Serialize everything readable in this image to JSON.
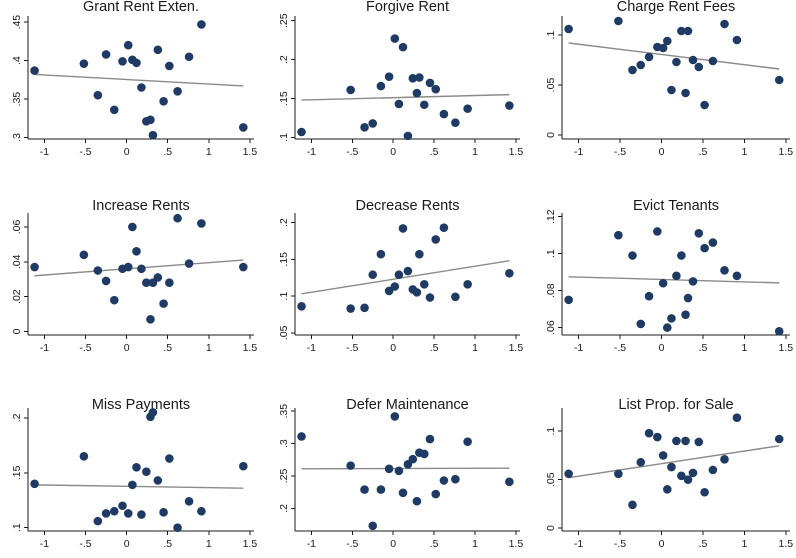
{
  "chart_data": [
    {
      "type": "scatter",
      "title": "Grant Rent Exten.",
      "xlabel": "",
      "ylabel": "",
      "xlim": [
        -1.2,
        1.55
      ],
      "ylim": [
        0.298,
        0.458
      ],
      "xticks": [
        -1,
        -0.5,
        0,
        0.5,
        1,
        1.5
      ],
      "xtick_labels": [
        "-1",
        "-.5",
        "0",
        ".5",
        "1",
        "1.5"
      ],
      "yticks": [
        0.3,
        0.35,
        0.4,
        0.45
      ],
      "ytick_labels": [
        ".3",
        ".35",
        ".4",
        ".45"
      ],
      "points": [
        {
          "x": -1.12,
          "y": 0.387
        },
        {
          "x": -0.52,
          "y": 0.396
        },
        {
          "x": -0.35,
          "y": 0.355
        },
        {
          "x": -0.25,
          "y": 0.408
        },
        {
          "x": -0.15,
          "y": 0.336
        },
        {
          "x": -0.05,
          "y": 0.399
        },
        {
          "x": 0.02,
          "y": 0.42
        },
        {
          "x": 0.07,
          "y": 0.401
        },
        {
          "x": 0.12,
          "y": 0.397
        },
        {
          "x": 0.18,
          "y": 0.365
        },
        {
          "x": 0.24,
          "y": 0.321
        },
        {
          "x": 0.29,
          "y": 0.323
        },
        {
          "x": 0.32,
          "y": 0.303
        },
        {
          "x": 0.38,
          "y": 0.414
        },
        {
          "x": 0.45,
          "y": 0.347
        },
        {
          "x": 0.52,
          "y": 0.393
        },
        {
          "x": 0.62,
          "y": 0.36
        },
        {
          "x": 0.76,
          "y": 0.405
        },
        {
          "x": 0.91,
          "y": 0.447
        },
        {
          "x": 1.42,
          "y": 0.313
        }
      ],
      "fit": [
        {
          "x": -1.12,
          "y": 0.382
        },
        {
          "x": 1.42,
          "y": 0.367
        }
      ]
    },
    {
      "type": "scatter",
      "title": "Forgive Rent",
      "xlabel": "",
      "ylabel": "",
      "xlim": [
        -1.2,
        1.55
      ],
      "ylim": [
        0.098,
        0.256
      ],
      "xticks": [
        -1,
        -0.5,
        0,
        0.5,
        1,
        1.5
      ],
      "xtick_labels": [
        "-1",
        "-.5",
        "0",
        ".5",
        "1",
        "1.5"
      ],
      "yticks": [
        0.1,
        0.15,
        0.2,
        0.25
      ],
      "ytick_labels": [
        ".1",
        ".15",
        ".2",
        ".25"
      ],
      "points": [
        {
          "x": -1.12,
          "y": 0.107
        },
        {
          "x": -0.52,
          "y": 0.161
        },
        {
          "x": -0.35,
          "y": 0.113
        },
        {
          "x": -0.25,
          "y": 0.118
        },
        {
          "x": -0.15,
          "y": 0.166
        },
        {
          "x": -0.05,
          "y": 0.178
        },
        {
          "x": 0.02,
          "y": 0.227
        },
        {
          "x": 0.07,
          "y": 0.143
        },
        {
          "x": 0.12,
          "y": 0.216
        },
        {
          "x": 0.18,
          "y": 0.102
        },
        {
          "x": 0.24,
          "y": 0.176
        },
        {
          "x": 0.29,
          "y": 0.157
        },
        {
          "x": 0.32,
          "y": 0.177
        },
        {
          "x": 0.38,
          "y": 0.142
        },
        {
          "x": 0.45,
          "y": 0.17
        },
        {
          "x": 0.52,
          "y": 0.162
        },
        {
          "x": 0.62,
          "y": 0.13
        },
        {
          "x": 0.76,
          "y": 0.119
        },
        {
          "x": 0.91,
          "y": 0.137
        },
        {
          "x": 1.42,
          "y": 0.141
        }
      ],
      "fit": [
        {
          "x": -1.12,
          "y": 0.148
        },
        {
          "x": 1.42,
          "y": 0.155
        }
      ]
    },
    {
      "type": "scatter",
      "title": "Charge Rent Fees",
      "xlabel": "",
      "ylabel": "",
      "xlim": [
        -1.2,
        1.55
      ],
      "ylim": [
        -0.004,
        0.119
      ],
      "xticks": [
        -1,
        -0.5,
        0,
        0.5,
        1,
        1.5
      ],
      "xtick_labels": [
        "-1",
        "-.5",
        "0",
        ".5",
        "1",
        "1.5"
      ],
      "yticks": [
        0,
        0.05,
        0.1
      ],
      "ytick_labels": [
        "0",
        ".05",
        ".1"
      ],
      "points": [
        {
          "x": -1.12,
          "y": 0.106
        },
        {
          "x": -0.52,
          "y": 0.114
        },
        {
          "x": -0.35,
          "y": 0.065
        },
        {
          "x": -0.25,
          "y": 0.07
        },
        {
          "x": -0.15,
          "y": 0.078
        },
        {
          "x": -0.05,
          "y": 0.088
        },
        {
          "x": 0.02,
          "y": 0.087
        },
        {
          "x": 0.07,
          "y": 0.094
        },
        {
          "x": 0.12,
          "y": 0.045
        },
        {
          "x": 0.18,
          "y": 0.073
        },
        {
          "x": 0.24,
          "y": 0.104
        },
        {
          "x": 0.29,
          "y": 0.042
        },
        {
          "x": 0.32,
          "y": 0.104
        },
        {
          "x": 0.38,
          "y": 0.075
        },
        {
          "x": 0.45,
          "y": 0.068
        },
        {
          "x": 0.52,
          "y": 0.03
        },
        {
          "x": 0.62,
          "y": 0.074
        },
        {
          "x": 0.76,
          "y": 0.111
        },
        {
          "x": 0.91,
          "y": 0.095
        },
        {
          "x": 1.42,
          "y": 0.055
        }
      ],
      "fit": [
        {
          "x": -1.12,
          "y": 0.092
        },
        {
          "x": 1.42,
          "y": 0.066
        }
      ]
    },
    {
      "type": "scatter",
      "title": "Increase Rents",
      "xlabel": "",
      "ylabel": "",
      "xlim": [
        -1.2,
        1.55
      ],
      "ylim": [
        -0.002,
        0.068
      ],
      "xticks": [
        -1,
        -0.5,
        0,
        0.5,
        1,
        1.5
      ],
      "xtick_labels": [
        "-1",
        "-.5",
        "0",
        ".5",
        "1",
        "1.5"
      ],
      "yticks": [
        0,
        0.02,
        0.04,
        0.06
      ],
      "ytick_labels": [
        "0",
        ".02",
        ".04",
        ".06"
      ],
      "points": [
        {
          "x": -1.12,
          "y": 0.037
        },
        {
          "x": -0.52,
          "y": 0.044
        },
        {
          "x": -0.35,
          "y": 0.035
        },
        {
          "x": -0.25,
          "y": 0.029
        },
        {
          "x": -0.15,
          "y": 0.018
        },
        {
          "x": -0.05,
          "y": 0.036
        },
        {
          "x": 0.02,
          "y": 0.037
        },
        {
          "x": 0.07,
          "y": 0.06
        },
        {
          "x": 0.12,
          "y": 0.046
        },
        {
          "x": 0.18,
          "y": 0.036
        },
        {
          "x": 0.24,
          "y": 0.028
        },
        {
          "x": 0.29,
          "y": 0.007
        },
        {
          "x": 0.32,
          "y": 0.028
        },
        {
          "x": 0.38,
          "y": 0.031
        },
        {
          "x": 0.45,
          "y": 0.016
        },
        {
          "x": 0.52,
          "y": 0.028
        },
        {
          "x": 0.62,
          "y": 0.065
        },
        {
          "x": 0.76,
          "y": 0.039
        },
        {
          "x": 0.91,
          "y": 0.062
        },
        {
          "x": 1.42,
          "y": 0.037
        }
      ],
      "fit": [
        {
          "x": -1.12,
          "y": 0.032
        },
        {
          "x": 1.42,
          "y": 0.041
        }
      ]
    },
    {
      "type": "scatter",
      "title": "Decrease Rents",
      "xlabel": "",
      "ylabel": "",
      "xlim": [
        -1.2,
        1.55
      ],
      "ylim": [
        0.047,
        0.213
      ],
      "xticks": [
        -1,
        -0.5,
        0,
        0.5,
        1,
        1.5
      ],
      "xtick_labels": [
        "-1",
        "-.5",
        "0",
        ".5",
        "1",
        "1.5"
      ],
      "yticks": [
        0.05,
        0.1,
        0.15,
        0.2
      ],
      "ytick_labels": [
        ".05",
        ".1",
        ".15",
        ".2"
      ],
      "points": [
        {
          "x": -1.12,
          "y": 0.086
        },
        {
          "x": -0.52,
          "y": 0.083
        },
        {
          "x": -0.35,
          "y": 0.084
        },
        {
          "x": -0.25,
          "y": 0.129
        },
        {
          "x": -0.15,
          "y": 0.157
        },
        {
          "x": -0.05,
          "y": 0.107
        },
        {
          "x": 0.02,
          "y": 0.113
        },
        {
          "x": 0.07,
          "y": 0.129
        },
        {
          "x": 0.12,
          "y": 0.192
        },
        {
          "x": 0.18,
          "y": 0.134
        },
        {
          "x": 0.24,
          "y": 0.109
        },
        {
          "x": 0.29,
          "y": 0.105
        },
        {
          "x": 0.32,
          "y": 0.157
        },
        {
          "x": 0.38,
          "y": 0.116
        },
        {
          "x": 0.45,
          "y": 0.098
        },
        {
          "x": 0.52,
          "y": 0.177
        },
        {
          "x": 0.62,
          "y": 0.193
        },
        {
          "x": 0.76,
          "y": 0.099
        },
        {
          "x": 0.91,
          "y": 0.116
        },
        {
          "x": 1.42,
          "y": 0.131
        }
      ],
      "fit": [
        {
          "x": -1.12,
          "y": 0.103
        },
        {
          "x": 1.42,
          "y": 0.148
        }
      ]
    },
    {
      "type": "scatter",
      "title": "Evict Tenants",
      "xlabel": "",
      "ylabel": "",
      "xlim": [
        -1.2,
        1.55
      ],
      "ylim": [
        0.056,
        0.122
      ],
      "xticks": [
        -1,
        -0.5,
        0,
        0.5,
        1,
        1.5
      ],
      "xtick_labels": [
        "-1",
        "-.5",
        "0",
        ".5",
        "1",
        "1.5"
      ],
      "yticks": [
        0.06,
        0.08,
        0.1,
        0.12
      ],
      "ytick_labels": [
        ".06",
        ".08",
        ".1",
        ".12"
      ],
      "points": [
        {
          "x": -1.12,
          "y": 0.075
        },
        {
          "x": -0.52,
          "y": 0.11
        },
        {
          "x": -0.35,
          "y": 0.099
        },
        {
          "x": -0.25,
          "y": 0.062
        },
        {
          "x": -0.15,
          "y": 0.077
        },
        {
          "x": -0.05,
          "y": 0.112
        },
        {
          "x": 0.02,
          "y": 0.084
        },
        {
          "x": 0.07,
          "y": 0.06
        },
        {
          "x": 0.12,
          "y": 0.065
        },
        {
          "x": 0.18,
          "y": 0.088
        },
        {
          "x": 0.24,
          "y": 0.099
        },
        {
          "x": 0.29,
          "y": 0.067
        },
        {
          "x": 0.32,
          "y": 0.076
        },
        {
          "x": 0.38,
          "y": 0.085
        },
        {
          "x": 0.45,
          "y": 0.111
        },
        {
          "x": 0.52,
          "y": 0.103
        },
        {
          "x": 0.62,
          "y": 0.106
        },
        {
          "x": 0.76,
          "y": 0.091
        },
        {
          "x": 0.91,
          "y": 0.088
        },
        {
          "x": 1.42,
          "y": 0.058
        }
      ],
      "fit": [
        {
          "x": -1.12,
          "y": 0.0875
        },
        {
          "x": 1.42,
          "y": 0.0842
        }
      ]
    },
    {
      "type": "scatter",
      "title": "Miss Payments",
      "xlabel": "",
      "ylabel": "",
      "xlim": [
        -1.2,
        1.55
      ],
      "ylim": [
        0.097,
        0.209
      ],
      "xticks": [
        -1,
        -0.5,
        0,
        0.5,
        1,
        1.5
      ],
      "xtick_labels": [
        "-1",
        "-.5",
        "0",
        ".5",
        "1",
        "1.5"
      ],
      "yticks": [
        0.1,
        0.15,
        0.2
      ],
      "ytick_labels": [
        ".1",
        ".15",
        ".2"
      ],
      "points": [
        {
          "x": -1.12,
          "y": 0.14
        },
        {
          "x": -0.52,
          "y": 0.165
        },
        {
          "x": -0.35,
          "y": 0.106
        },
        {
          "x": -0.25,
          "y": 0.113
        },
        {
          "x": -0.15,
          "y": 0.115
        },
        {
          "x": -0.05,
          "y": 0.12
        },
        {
          "x": 0.02,
          "y": 0.113
        },
        {
          "x": 0.07,
          "y": 0.139
        },
        {
          "x": 0.12,
          "y": 0.155
        },
        {
          "x": 0.18,
          "y": 0.112
        },
        {
          "x": 0.24,
          "y": 0.151
        },
        {
          "x": 0.29,
          "y": 0.201
        },
        {
          "x": 0.32,
          "y": 0.205
        },
        {
          "x": 0.38,
          "y": 0.143
        },
        {
          "x": 0.45,
          "y": 0.114
        },
        {
          "x": 0.52,
          "y": 0.163
        },
        {
          "x": 0.62,
          "y": 0.1
        },
        {
          "x": 0.76,
          "y": 0.124
        },
        {
          "x": 0.91,
          "y": 0.115
        },
        {
          "x": 1.42,
          "y": 0.156
        }
      ],
      "fit": [
        {
          "x": -1.12,
          "y": 0.139
        },
        {
          "x": 1.42,
          "y": 0.136
        }
      ]
    },
    {
      "type": "scatter",
      "title": "Defer Maintenance",
      "xlabel": "",
      "ylabel": "",
      "xlim": [
        -1.2,
        1.55
      ],
      "ylim": [
        0.165,
        0.355
      ],
      "xticks": [
        -1,
        -0.5,
        0,
        0.5,
        1,
        1.5
      ],
      "xtick_labels": [
        "-1",
        "-.5",
        "0",
        ".5",
        "1",
        "1.5"
      ],
      "yticks": [
        0.2,
        0.25,
        0.3,
        0.35
      ],
      "ytick_labels": [
        ".2",
        ".25",
        ".3",
        ".35"
      ],
      "points": [
        {
          "x": -1.12,
          "y": 0.311
        },
        {
          "x": -0.52,
          "y": 0.266
        },
        {
          "x": -0.35,
          "y": 0.229
        },
        {
          "x": -0.25,
          "y": 0.173
        },
        {
          "x": -0.15,
          "y": 0.229
        },
        {
          "x": -0.05,
          "y": 0.261
        },
        {
          "x": 0.02,
          "y": 0.342
        },
        {
          "x": 0.07,
          "y": 0.258
        },
        {
          "x": 0.12,
          "y": 0.224
        },
        {
          "x": 0.18,
          "y": 0.268
        },
        {
          "x": 0.24,
          "y": 0.276
        },
        {
          "x": 0.29,
          "y": 0.211
        },
        {
          "x": 0.32,
          "y": 0.286
        },
        {
          "x": 0.38,
          "y": 0.284
        },
        {
          "x": 0.45,
          "y": 0.307
        },
        {
          "x": 0.52,
          "y": 0.222
        },
        {
          "x": 0.62,
          "y": 0.243
        },
        {
          "x": 0.76,
          "y": 0.245
        },
        {
          "x": 0.91,
          "y": 0.303
        },
        {
          "x": 1.42,
          "y": 0.241
        }
      ],
      "fit": [
        {
          "x": -1.12,
          "y": 0.261
        },
        {
          "x": 1.42,
          "y": 0.262
        }
      ]
    },
    {
      "type": "scatter",
      "title": "List Prop. for Sale",
      "xlabel": "",
      "ylabel": "",
      "xlim": [
        -1.2,
        1.55
      ],
      "ylim": [
        -0.003,
        0.124
      ],
      "xticks": [
        -1,
        -0.5,
        0,
        0.5,
        1,
        1.5
      ],
      "xtick_labels": [
        "-1",
        "-.5",
        "0",
        ".5",
        "1",
        "1.5"
      ],
      "yticks": [
        0,
        0.05,
        0.1
      ],
      "ytick_labels": [
        "0",
        ".05",
        ".1"
      ],
      "points": [
        {
          "x": -1.12,
          "y": 0.056
        },
        {
          "x": -0.52,
          "y": 0.056
        },
        {
          "x": -0.35,
          "y": 0.024
        },
        {
          "x": -0.25,
          "y": 0.068
        },
        {
          "x": -0.15,
          "y": 0.098
        },
        {
          "x": -0.05,
          "y": 0.094
        },
        {
          "x": 0.02,
          "y": 0.075
        },
        {
          "x": 0.07,
          "y": 0.04
        },
        {
          "x": 0.12,
          "y": 0.063
        },
        {
          "x": 0.18,
          "y": 0.09
        },
        {
          "x": 0.24,
          "y": 0.054
        },
        {
          "x": 0.29,
          "y": 0.09
        },
        {
          "x": 0.32,
          "y": 0.05
        },
        {
          "x": 0.38,
          "y": 0.057
        },
        {
          "x": 0.45,
          "y": 0.089
        },
        {
          "x": 0.52,
          "y": 0.037
        },
        {
          "x": 0.62,
          "y": 0.06
        },
        {
          "x": 0.76,
          "y": 0.071
        },
        {
          "x": 0.91,
          "y": 0.114
        },
        {
          "x": 1.42,
          "y": 0.092
        }
      ],
      "fit": [
        {
          "x": -1.12,
          "y": 0.052
        },
        {
          "x": 1.42,
          "y": 0.085
        }
      ]
    }
  ]
}
